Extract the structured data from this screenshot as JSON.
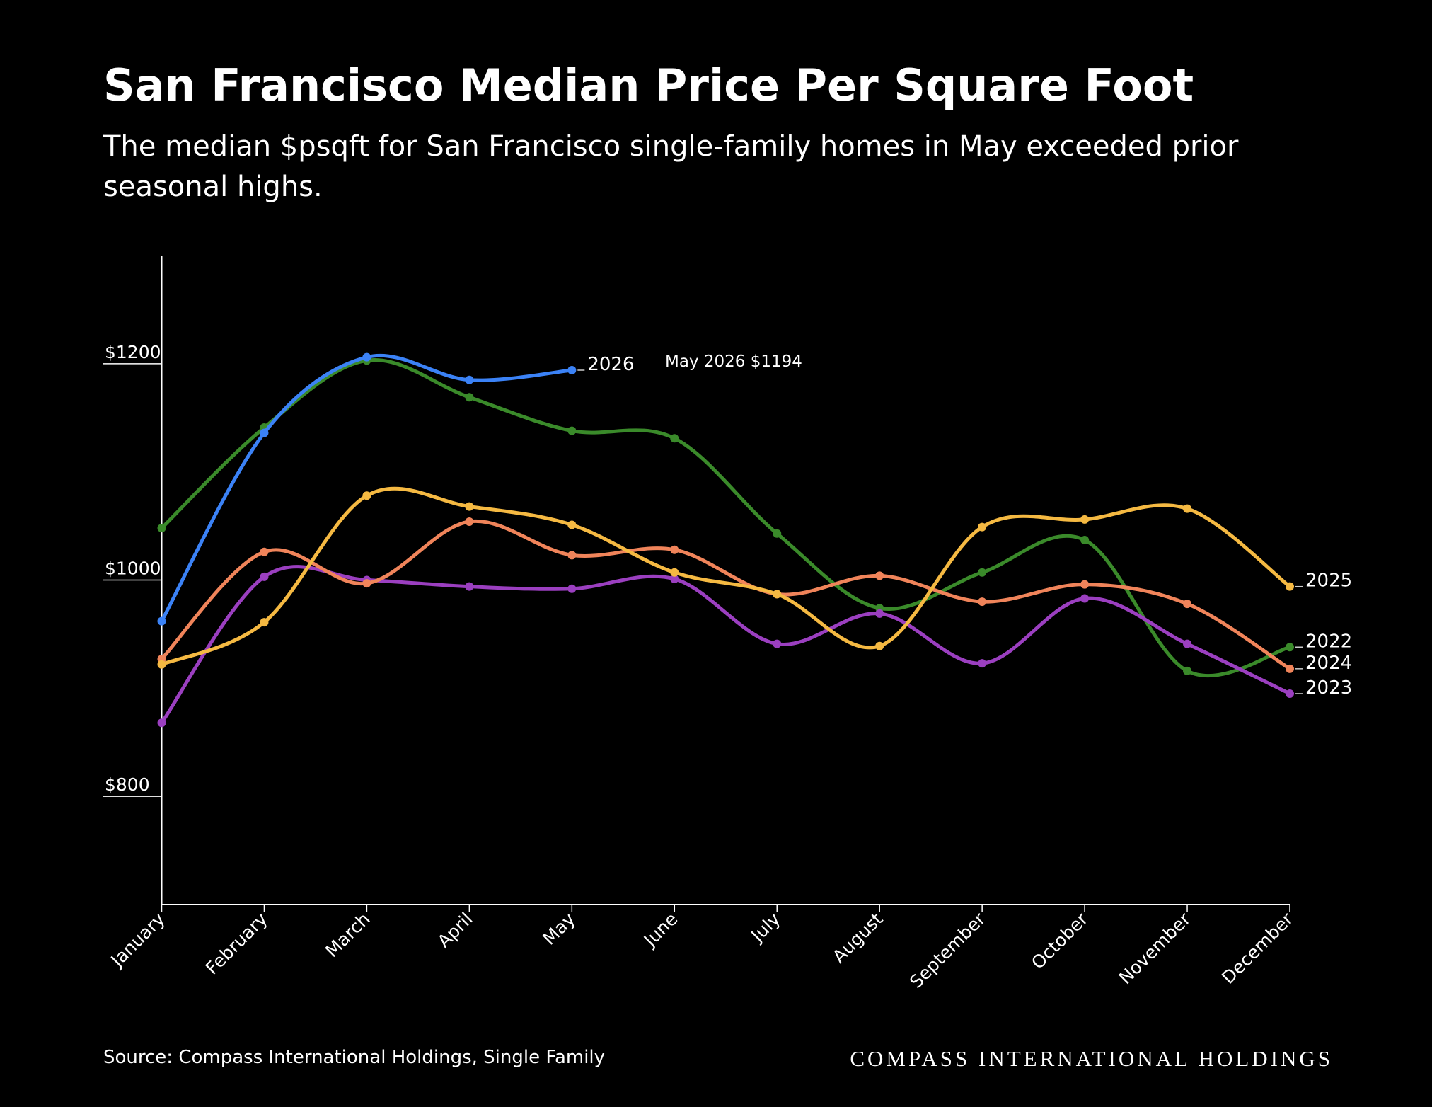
{
  "chart_data": {
    "type": "line",
    "title": "San Francisco Median Price Per Square Foot",
    "subtitle": [
      "The median $psqft for San Francisco single-family homes in May exceeded prior",
      "seasonal highs."
    ],
    "annotation": "May 2026 $1194",
    "source": "Source: Compass International Holdings, Single Family",
    "logo": "COMPASS INTERNATIONAL HOLDINGS",
    "categories": [
      "January",
      "February",
      "March",
      "April",
      "May",
      "June",
      "July",
      "August",
      "September",
      "October",
      "November",
      "December"
    ],
    "ylim": [
      700,
      1300
    ],
    "yticks": [
      {
        "value": 800,
        "label": "$800"
      },
      {
        "value": 1000,
        "label": "$1000"
      },
      {
        "value": 1200,
        "label": "$1200"
      }
    ],
    "series": [
      {
        "name": "2022",
        "color": "#3a8a2a",
        "values": [
          1048,
          1141,
          1203,
          1169,
          1138,
          1131,
          1043,
          974,
          1007,
          1037,
          916,
          938
        ]
      },
      {
        "name": "2023",
        "color": "#9b3fc0",
        "values": [
          868,
          1003,
          1000,
          994,
          992,
          1001,
          941,
          969,
          923,
          983,
          941,
          895
        ]
      },
      {
        "name": "2024",
        "color": "#f0845a",
        "values": [
          927,
          1026,
          997,
          1054,
          1023,
          1028,
          987,
          1004,
          980,
          996,
          978,
          918
        ]
      },
      {
        "name": "2025",
        "color": "#f5b942",
        "values": [
          922,
          961,
          1078,
          1068,
          1051,
          1007,
          987,
          939,
          1049,
          1056,
          1066,
          994
        ]
      },
      {
        "name": "2026",
        "color": "#3b82f6",
        "values": [
          962,
          1136,
          1206,
          1185,
          1194,
          null,
          null,
          null,
          null,
          null,
          null,
          null
        ]
      }
    ]
  }
}
